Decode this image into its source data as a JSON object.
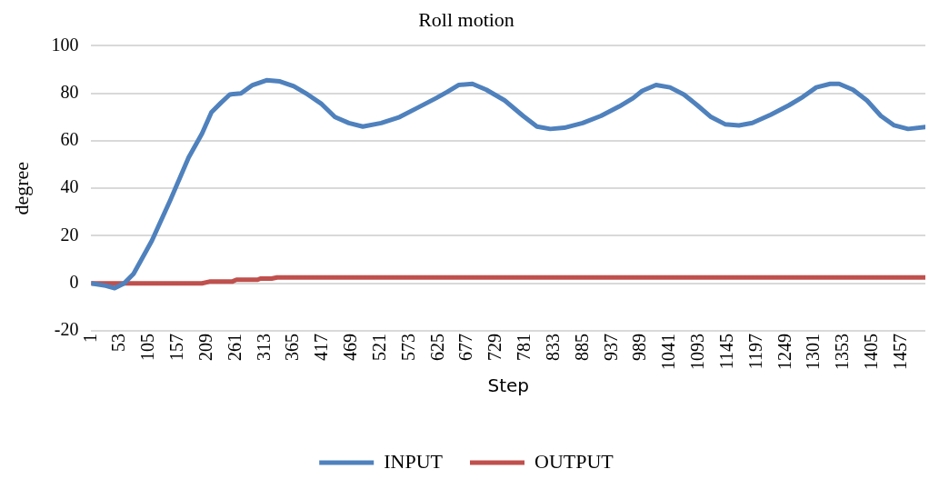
{
  "chart_data": {
    "type": "line",
    "title": "Roll motion",
    "xlabel": "Step",
    "ylabel": "degree",
    "xlim": [
      1,
      1500
    ],
    "xticks": [
      1,
      53,
      105,
      157,
      209,
      261,
      313,
      365,
      417,
      469,
      521,
      573,
      625,
      677,
      729,
      781,
      833,
      885,
      937,
      989,
      1041,
      1093,
      1145,
      1197,
      1249,
      1301,
      1353,
      1405,
      1457
    ],
    "ylim": [
      -20,
      100
    ],
    "yticks": [
      -20,
      0,
      20,
      40,
      60,
      80,
      100
    ],
    "grid": "y",
    "legend": "bottom",
    "marker": "none",
    "line_style": "solid",
    "series": [
      {
        "name": "INPUT",
        "color": "#4f81bd",
        "x": [
          1,
          27,
          43,
          60,
          77,
          110,
          143,
          176,
          200,
          217,
          234,
          250,
          270,
          291,
          316,
          340,
          365,
          390,
          415,
          439,
          464,
          489,
          522,
          555,
          588,
          621,
          640,
          661,
          686,
          711,
          744,
          777,
          802,
          826,
          851,
          884,
          917,
          950,
          975,
          991,
          1016,
          1041,
          1066,
          1090,
          1115,
          1140,
          1165,
          1189,
          1222,
          1255,
          1280,
          1304,
          1329,
          1345,
          1370,
          1395,
          1420,
          1444,
          1469,
          1500
        ],
        "values": [
          0,
          -1,
          -2,
          0,
          4,
          18,
          35,
          53,
          63,
          72,
          76,
          79.5,
          80,
          83.5,
          85.5,
          85,
          83,
          79.5,
          75.5,
          70,
          67.5,
          66,
          67.5,
          70,
          74,
          78,
          80.5,
          83.5,
          84,
          81.5,
          77,
          70.5,
          66,
          65,
          65.5,
          67.5,
          70.5,
          74.5,
          78,
          81,
          83.5,
          82.5,
          79.5,
          75,
          70,
          67,
          66.5,
          67.5,
          71,
          75,
          78.5,
          82.5,
          84,
          84,
          81.5,
          77,
          70.5,
          66.5,
          65,
          65.8
        ]
      },
      {
        "name": "OUTPUT",
        "color": "#c0504d",
        "x": [
          1,
          200,
          215,
          255,
          262,
          300,
          305,
          325,
          335,
          1500
        ],
        "values": [
          0,
          0,
          0.8,
          0.8,
          1.5,
          1.5,
          2,
          2,
          2.5,
          2.5
        ]
      }
    ]
  }
}
